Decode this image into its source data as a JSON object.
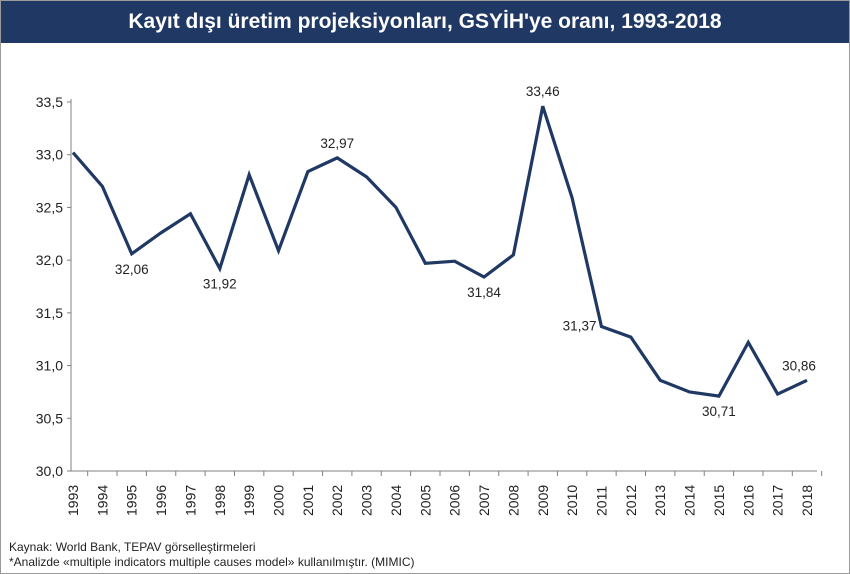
{
  "title": "Kayıt dışı üretim projeksiyonları, GSYİH'ye oranı, 1993-2018",
  "footer": {
    "source": "Kaynak: World Bank, TEPAV görselleştirmeleri",
    "note": "*Analizde «multiple indicators multiple causes model» kullanılmıştır. (MIMIC)"
  },
  "chart_data": {
    "type": "line",
    "title": "Kayıt dışı üretim projeksiyonları, GSYİH'ye oranı, 1993-2018",
    "xlabel": "",
    "ylabel": "",
    "ylim": [
      30.0,
      33.5
    ],
    "yticks": [
      "30,0",
      "30,5",
      "31,0",
      "31,5",
      "32,0",
      "32,5",
      "33,0",
      "33,5"
    ],
    "grid": false,
    "line_color": "#1f3864",
    "x": [
      "1993",
      "1994",
      "1995",
      "1996",
      "1997",
      "1998",
      "1999",
      "2000",
      "2001",
      "2002",
      "2003",
      "2004",
      "2005",
      "2006",
      "2007",
      "2008",
      "2009",
      "2010",
      "2011",
      "2012",
      "2013",
      "2014",
      "2015",
      "2016",
      "2017",
      "2018"
    ],
    "values": [
      33.02,
      32.7,
      32.06,
      32.26,
      32.44,
      31.92,
      32.81,
      32.09,
      32.84,
      32.97,
      32.79,
      32.5,
      31.97,
      31.99,
      31.84,
      32.05,
      33.46,
      32.59,
      31.37,
      31.27,
      30.86,
      30.75,
      30.71,
      31.22,
      30.73,
      30.86
    ],
    "data_labels": [
      {
        "x": "1995",
        "text": "32,06",
        "pos": "below"
      },
      {
        "x": "1998",
        "text": "31,92",
        "pos": "below"
      },
      {
        "x": "2002",
        "text": "32,97",
        "pos": "above"
      },
      {
        "x": "2007",
        "text": "31,84",
        "pos": "below"
      },
      {
        "x": "2009",
        "text": "33,46",
        "pos": "above"
      },
      {
        "x": "2011",
        "text": "31,37",
        "pos": "left"
      },
      {
        "x": "2015",
        "text": "30,71",
        "pos": "below"
      },
      {
        "x": "2018",
        "text": "30,86",
        "pos": "above"
      }
    ]
  }
}
